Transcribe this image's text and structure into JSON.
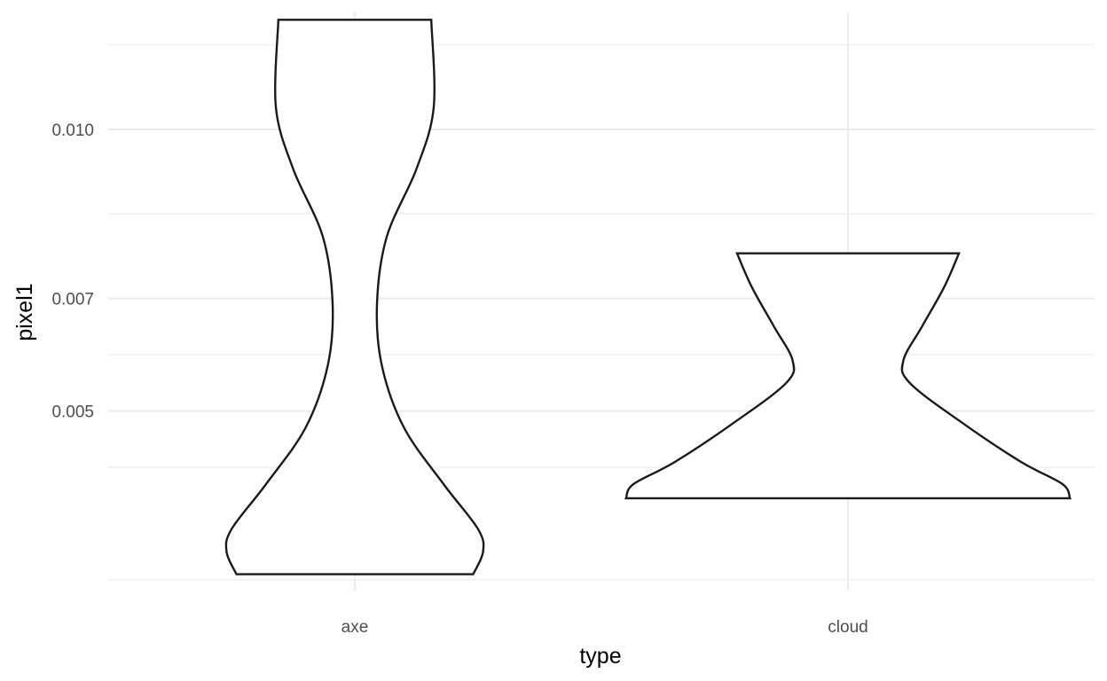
{
  "chart_data": {
    "type": "violin",
    "title": "",
    "xlabel": "type",
    "ylabel": "pixel1",
    "categories": [
      "axe",
      "cloud"
    ],
    "ylim": [
      0.00181,
      0.01208
    ],
    "y_ticks": [
      0.005,
      0.007,
      0.01
    ],
    "y_tick_labels": [
      "0.005",
      "0.007",
      "0.010"
    ],
    "grid": true,
    "violins": [
      {
        "category": "axe",
        "y_min": 0.0021,
        "y_max": 0.01195,
        "density_profile": [
          {
            "y": 0.0021,
            "w": 0.48
          },
          {
            "y": 0.0025,
            "w": 0.52
          },
          {
            "y": 0.0029,
            "w": 0.5
          },
          {
            "y": 0.0037,
            "w": 0.36
          },
          {
            "y": 0.0047,
            "w": 0.2
          },
          {
            "y": 0.0058,
            "w": 0.11
          },
          {
            "y": 0.0069,
            "w": 0.09
          },
          {
            "y": 0.0081,
            "w": 0.13
          },
          {
            "y": 0.0093,
            "w": 0.25
          },
          {
            "y": 0.0104,
            "w": 0.32
          },
          {
            "y": 0.01195,
            "w": 0.31
          }
        ]
      },
      {
        "category": "cloud",
        "y_min": 0.00345,
        "y_max": 0.0078,
        "density_profile": [
          {
            "y": 0.00345,
            "w": 0.9
          },
          {
            "y": 0.0037,
            "w": 0.87
          },
          {
            "y": 0.0041,
            "w": 0.7
          },
          {
            "y": 0.0048,
            "w": 0.46
          },
          {
            "y": 0.0055,
            "w": 0.25
          },
          {
            "y": 0.0059,
            "w": 0.225
          },
          {
            "y": 0.0065,
            "w": 0.3
          },
          {
            "y": 0.0072,
            "w": 0.39
          },
          {
            "y": 0.0078,
            "w": 0.45
          }
        ]
      }
    ]
  }
}
